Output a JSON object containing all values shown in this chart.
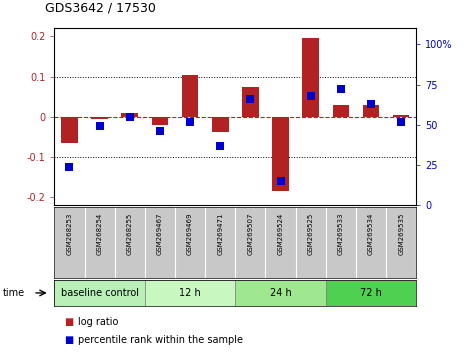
{
  "title": "GDS3642 / 17530",
  "samples": [
    "GSM268253",
    "GSM268254",
    "GSM268255",
    "GSM269467",
    "GSM269469",
    "GSM269471",
    "GSM269507",
    "GSM269524",
    "GSM269525",
    "GSM269533",
    "GSM269534",
    "GSM269535"
  ],
  "log_ratio": [
    -0.065,
    -0.005,
    0.01,
    -0.02,
    0.103,
    -0.038,
    0.073,
    -0.185,
    0.195,
    0.03,
    0.03,
    0.005
  ],
  "percentile_rank": [
    24,
    49,
    55,
    46,
    52,
    37,
    66,
    15,
    68,
    72,
    63,
    52
  ],
  "groups": [
    {
      "label": "baseline control",
      "start": 0,
      "end": 3,
      "color": "#b8f0b8"
    },
    {
      "label": "12 h",
      "start": 3,
      "end": 6,
      "color": "#c8f8c0"
    },
    {
      "label": "24 h",
      "start": 6,
      "end": 9,
      "color": "#a0e890"
    },
    {
      "label": "72 h",
      "start": 9,
      "end": 12,
      "color": "#50d050"
    }
  ],
  "bar_color": "#b22222",
  "dot_color": "#0000cc",
  "ylim_left": [
    -0.22,
    0.22
  ],
  "ylim_right": [
    0,
    110
  ],
  "yticks_left": [
    -0.2,
    -0.1,
    0,
    0.1,
    0.2
  ],
  "yticks_right": [
    0,
    25,
    50,
    75,
    100
  ],
  "bg_plot": "#ffffff",
  "bg_samples": "#c8c8c8",
  "bg_figure": "#ffffff",
  "bar_width": 0.55,
  "dot_size": 30
}
